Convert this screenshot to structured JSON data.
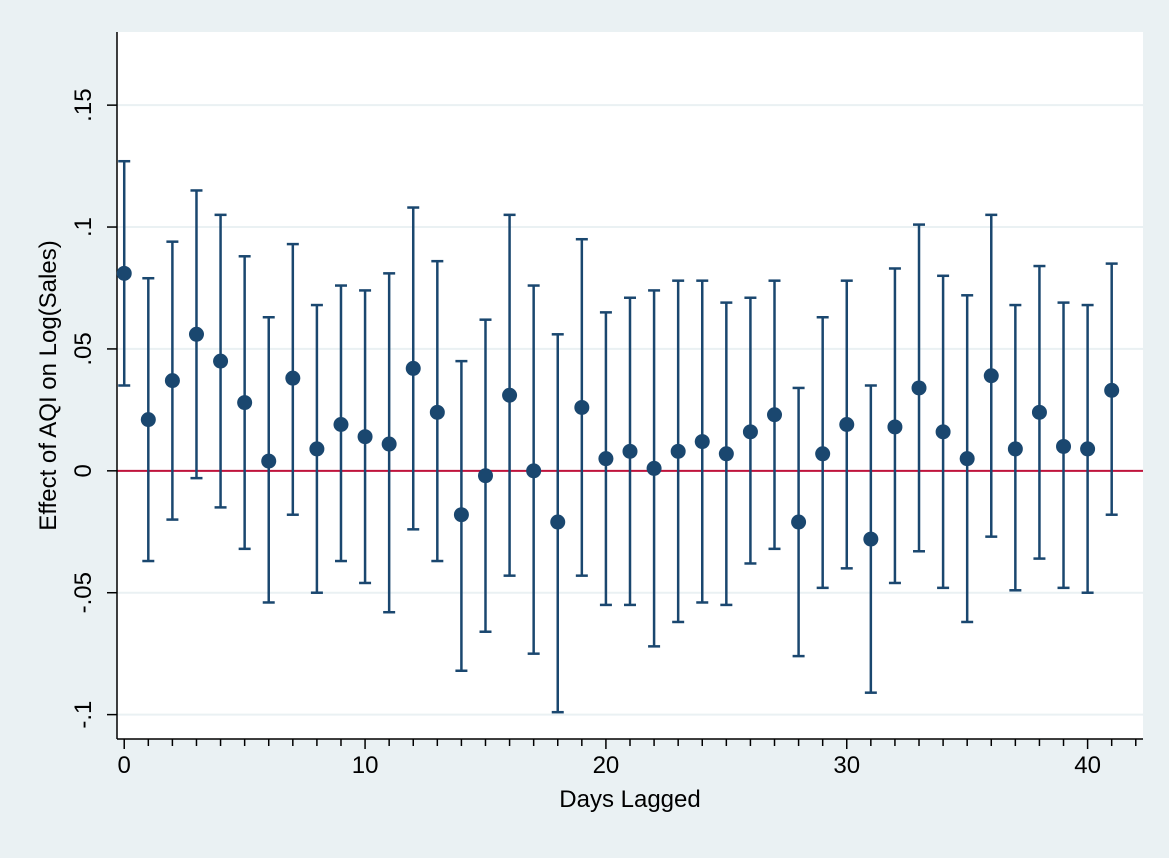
{
  "chart_data": {
    "type": "scatter",
    "xlabel": "Days Lagged",
    "ylabel": "Effect of AQI on Log(Sales)",
    "xlim": [
      -0.3,
      42.3
    ],
    "ylim": [
      -0.11,
      0.18
    ],
    "x_ticks": [
      0,
      10,
      20,
      30,
      40
    ],
    "x_tick_labels": [
      "0",
      "10",
      "20",
      "30",
      "40"
    ],
    "x_minor_ticks": [
      0,
      1,
      2,
      3,
      4,
      5,
      6,
      7,
      8,
      9,
      10,
      11,
      12,
      13,
      14,
      15,
      16,
      17,
      18,
      19,
      20,
      21,
      22,
      23,
      24,
      25,
      26,
      27,
      28,
      29,
      30,
      31,
      32,
      33,
      34,
      35,
      36,
      37,
      38,
      39,
      40,
      41,
      42
    ],
    "y_ticks": [
      -0.1,
      -0.05,
      0,
      0.05,
      0.1,
      0.15
    ],
    "y_tick_labels": [
      "-.1",
      "-.05",
      "0",
      ".05",
      ".1",
      ".15"
    ],
    "grid": true,
    "reference_line": {
      "y": 0,
      "color": "#c0143c"
    },
    "colors": {
      "background": "#eaf1f3",
      "plot_background": "#ffffff",
      "marker": "#1a476f",
      "grid": "#eaf1f3"
    },
    "points": [
      {
        "x": 0,
        "y": 0.081,
        "lo": 0.035,
        "hi": 0.127
      },
      {
        "x": 1,
        "y": 0.021,
        "lo": -0.037,
        "hi": 0.079
      },
      {
        "x": 2,
        "y": 0.037,
        "lo": -0.02,
        "hi": 0.094
      },
      {
        "x": 3,
        "y": 0.056,
        "lo": -0.003,
        "hi": 0.115
      },
      {
        "x": 4,
        "y": 0.045,
        "lo": -0.015,
        "hi": 0.105
      },
      {
        "x": 5,
        "y": 0.028,
        "lo": -0.032,
        "hi": 0.088
      },
      {
        "x": 6,
        "y": 0.004,
        "lo": -0.054,
        "hi": 0.063
      },
      {
        "x": 7,
        "y": 0.038,
        "lo": -0.018,
        "hi": 0.093
      },
      {
        "x": 8,
        "y": 0.009,
        "lo": -0.05,
        "hi": 0.068
      },
      {
        "x": 9,
        "y": 0.019,
        "lo": -0.037,
        "hi": 0.076
      },
      {
        "x": 10,
        "y": 0.014,
        "lo": -0.046,
        "hi": 0.074
      },
      {
        "x": 11,
        "y": 0.011,
        "lo": -0.058,
        "hi": 0.081
      },
      {
        "x": 12,
        "y": 0.042,
        "lo": -0.024,
        "hi": 0.108
      },
      {
        "x": 13,
        "y": 0.024,
        "lo": -0.037,
        "hi": 0.086
      },
      {
        "x": 14,
        "y": -0.018,
        "lo": -0.082,
        "hi": 0.045
      },
      {
        "x": 15,
        "y": -0.002,
        "lo": -0.066,
        "hi": 0.062
      },
      {
        "x": 16,
        "y": 0.031,
        "lo": -0.043,
        "hi": 0.105
      },
      {
        "x": 17,
        "y": 0.0,
        "lo": -0.075,
        "hi": 0.076
      },
      {
        "x": 18,
        "y": -0.021,
        "lo": -0.099,
        "hi": 0.056
      },
      {
        "x": 19,
        "y": 0.026,
        "lo": -0.043,
        "hi": 0.095
      },
      {
        "x": 20,
        "y": 0.005,
        "lo": -0.055,
        "hi": 0.065
      },
      {
        "x": 21,
        "y": 0.008,
        "lo": -0.055,
        "hi": 0.071
      },
      {
        "x": 22,
        "y": 0.001,
        "lo": -0.072,
        "hi": 0.074
      },
      {
        "x": 23,
        "y": 0.008,
        "lo": -0.062,
        "hi": 0.078
      },
      {
        "x": 24,
        "y": 0.012,
        "lo": -0.054,
        "hi": 0.078
      },
      {
        "x": 25,
        "y": 0.007,
        "lo": -0.055,
        "hi": 0.069
      },
      {
        "x": 26,
        "y": 0.016,
        "lo": -0.038,
        "hi": 0.071
      },
      {
        "x": 27,
        "y": 0.023,
        "lo": -0.032,
        "hi": 0.078
      },
      {
        "x": 28,
        "y": -0.021,
        "lo": -0.076,
        "hi": 0.034
      },
      {
        "x": 29,
        "y": 0.007,
        "lo": -0.048,
        "hi": 0.063
      },
      {
        "x": 30,
        "y": 0.019,
        "lo": -0.04,
        "hi": 0.078
      },
      {
        "x": 31,
        "y": -0.028,
        "lo": -0.091,
        "hi": 0.035
      },
      {
        "x": 32,
        "y": 0.018,
        "lo": -0.046,
        "hi": 0.083
      },
      {
        "x": 33,
        "y": 0.034,
        "lo": -0.033,
        "hi": 0.101
      },
      {
        "x": 34,
        "y": 0.016,
        "lo": -0.048,
        "hi": 0.08
      },
      {
        "x": 35,
        "y": 0.005,
        "lo": -0.062,
        "hi": 0.072
      },
      {
        "x": 36,
        "y": 0.039,
        "lo": -0.027,
        "hi": 0.105
      },
      {
        "x": 37,
        "y": 0.009,
        "lo": -0.049,
        "hi": 0.068
      },
      {
        "x": 38,
        "y": 0.024,
        "lo": -0.036,
        "hi": 0.084
      },
      {
        "x": 39,
        "y": 0.01,
        "lo": -0.048,
        "hi": 0.069
      },
      {
        "x": 40,
        "y": 0.009,
        "lo": -0.05,
        "hi": 0.068
      },
      {
        "x": 41,
        "y": 0.033,
        "lo": -0.018,
        "hi": 0.085
      }
    ]
  }
}
